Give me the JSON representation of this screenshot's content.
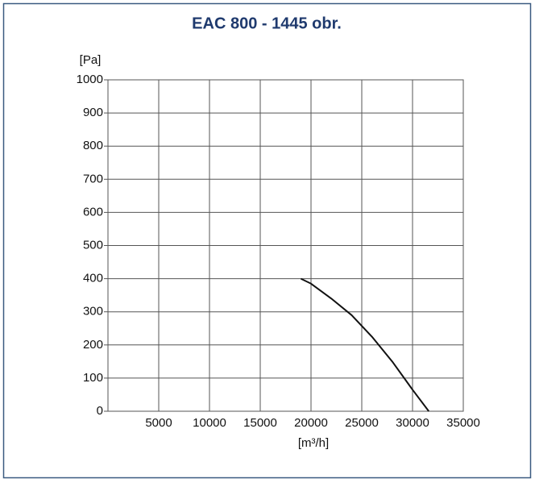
{
  "chart_data": {
    "type": "line",
    "title": "EAC 800 - 1445 obr.",
    "y_label": "[Pa]",
    "x_label": "[m³/h]",
    "x": [
      19000,
      20000,
      22000,
      24000,
      26000,
      28000,
      30000,
      31600
    ],
    "series": [
      {
        "name": "EAC 800",
        "color": "#111111",
        "values": [
          400,
          385,
          340,
          290,
          225,
          150,
          65,
          0
        ]
      }
    ],
    "xlim": [
      0,
      35000
    ],
    "xticks": [
      5000,
      10000,
      15000,
      20000,
      25000,
      30000,
      35000
    ],
    "ylim": [
      0,
      1000
    ],
    "yticks": [
      0,
      100,
      200,
      300,
      400,
      500,
      600,
      700,
      800,
      900,
      1000
    ],
    "grid": true
  }
}
